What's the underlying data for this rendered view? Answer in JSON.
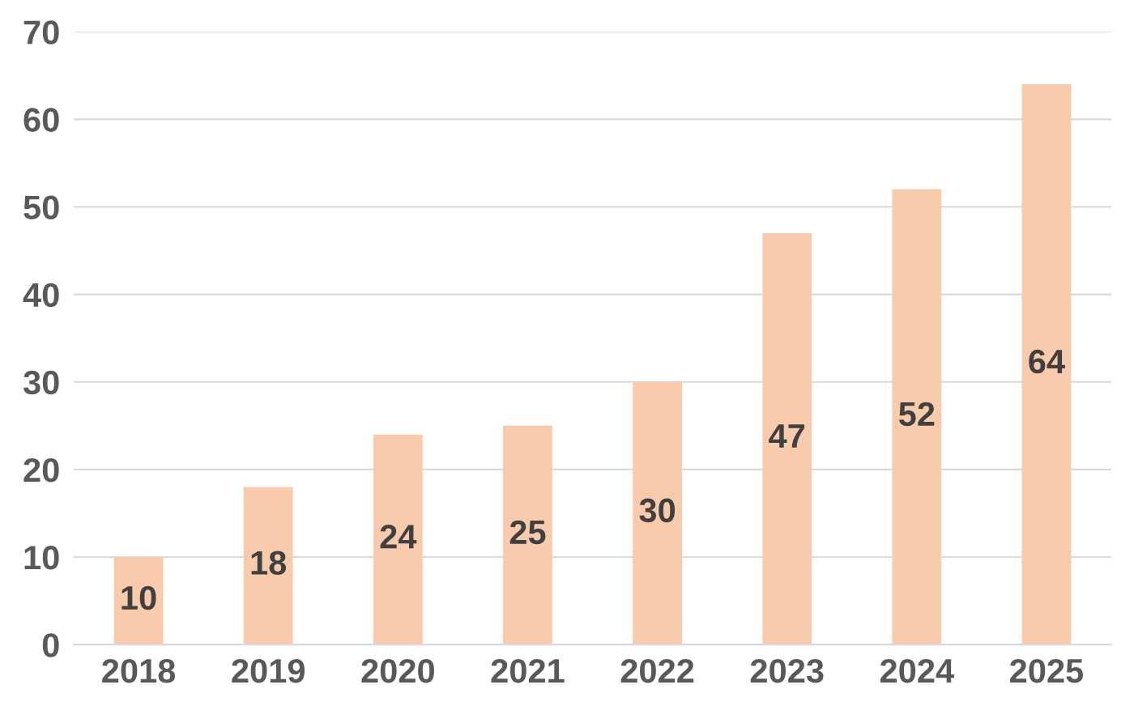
{
  "chart_data": {
    "type": "bar",
    "categories": [
      "2018",
      "2019",
      "2020",
      "2021",
      "2022",
      "2023",
      "2024",
      "2025"
    ],
    "values": [
      10,
      18,
      24,
      25,
      30,
      47,
      52,
      64
    ],
    "color": "#f8cbad",
    "ylim": [
      0,
      70
    ],
    "yticks": [
      0,
      10,
      20,
      30,
      40,
      50,
      60,
      70
    ],
    "grid": "y",
    "data_labels": true
  }
}
